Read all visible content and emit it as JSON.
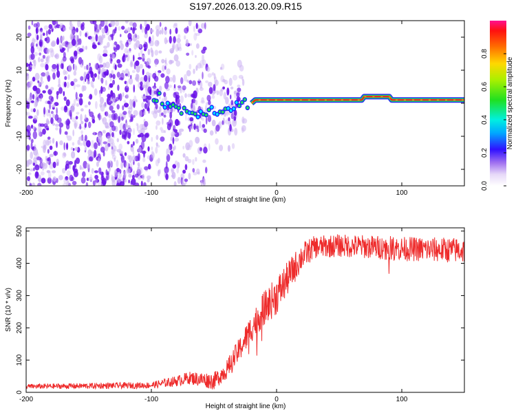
{
  "title": "S197.2026.013.20.09.R15",
  "colors": {
    "snr_line": "#ee2b2b",
    "spectrum_dark": "#6a12e8",
    "spectrum_light": "#cbb2f2"
  },
  "chart_data": [
    {
      "type": "heatmap",
      "name": "spectrogram",
      "xlabel": "Height of straight line (km)",
      "ylabel": "Frequency (Hz)",
      "xlim": [
        -200,
        150
      ],
      "ylim": [
        -25,
        25
      ],
      "xticks": [
        -200,
        -100,
        0,
        100
      ],
      "yticks": [
        -20,
        -10,
        0,
        10,
        20
      ],
      "ridge": [
        {
          "x": -95,
          "y": 2
        },
        {
          "x": -85,
          "y": -1
        },
        {
          "x": -75,
          "y": -2
        },
        {
          "x": -65,
          "y": -3
        },
        {
          "x": -55,
          "y": -2
        },
        {
          "x": -45,
          "y": -2
        },
        {
          "x": -35,
          "y": -1
        },
        {
          "x": -27,
          "y": 0
        },
        {
          "x": -20,
          "y": 0
        },
        {
          "x": -17,
          "y": 1
        },
        {
          "x": 0,
          "y": 1
        },
        {
          "x": 50,
          "y": 1
        },
        {
          "x": 68,
          "y": 1
        },
        {
          "x": 70,
          "y": 2
        },
        {
          "x": 90,
          "y": 2
        },
        {
          "x": 92,
          "y": 1
        },
        {
          "x": 150,
          "y": 1
        }
      ]
    },
    {
      "type": "colorbar",
      "name": "amplitude-scale",
      "label": "Normalized spectral amplitude",
      "range": [
        0,
        1
      ],
      "ticks": [
        "0.0",
        "0.2",
        "0.4",
        "0.6",
        "0.8"
      ]
    },
    {
      "type": "line",
      "name": "snr",
      "xlabel": "Height of straight line (km)",
      "ylabel": "SNR (10 * v/v)",
      "xlim": [
        -200,
        150
      ],
      "ylim": [
        0,
        510
      ],
      "xticks": [
        -200,
        -100,
        0,
        100
      ],
      "yticks": [
        0,
        100,
        200,
        300,
        400,
        500
      ],
      "envelope": [
        {
          "x": -200,
          "y": 18
        },
        {
          "x": -150,
          "y": 20
        },
        {
          "x": -100,
          "y": 22
        },
        {
          "x": -80,
          "y": 35
        },
        {
          "x": -70,
          "y": 45
        },
        {
          "x": -60,
          "y": 40
        },
        {
          "x": -50,
          "y": 35
        },
        {
          "x": -40,
          "y": 70
        },
        {
          "x": -30,
          "y": 130
        },
        {
          "x": -20,
          "y": 200
        },
        {
          "x": -10,
          "y": 260
        },
        {
          "x": 0,
          "y": 300
        },
        {
          "x": 10,
          "y": 360
        },
        {
          "x": 20,
          "y": 420
        },
        {
          "x": 30,
          "y": 450
        },
        {
          "x": 50,
          "y": 455
        },
        {
          "x": 80,
          "y": 450
        },
        {
          "x": 100,
          "y": 445
        },
        {
          "x": 150,
          "y": 440
        }
      ],
      "noise_amplitude": [
        {
          "x": -200,
          "y": 8
        },
        {
          "x": -100,
          "y": 10
        },
        {
          "x": -40,
          "y": 30
        },
        {
          "x": 0,
          "y": 60
        },
        {
          "x": 30,
          "y": 35
        },
        {
          "x": 150,
          "y": 40
        }
      ]
    }
  ]
}
